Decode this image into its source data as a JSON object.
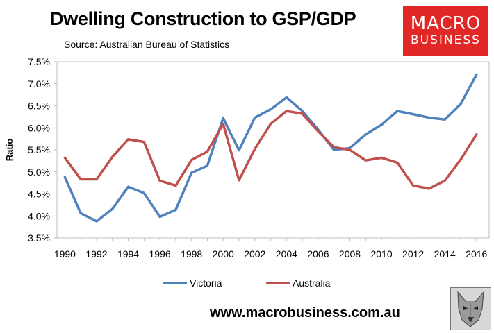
{
  "header": {
    "title": "Dwelling Construction to GSP/GDP",
    "subtitle": "Source: Australian Bureau of Statistics"
  },
  "logo": {
    "line1": "MACRO",
    "line2": "BUSINESS"
  },
  "footer": {
    "url": "www.macrobusiness.com.au"
  },
  "chart_data": {
    "type": "line",
    "title": "Dwelling Construction to GSP/GDP",
    "xlabel": "",
    "ylabel": "Ratio",
    "ylim": [
      3.5,
      7.5
    ],
    "xlim": [
      1989.5,
      2016.8
    ],
    "x": [
      1990,
      1991,
      1992,
      1993,
      1994,
      1995,
      1996,
      1997,
      1998,
      1999,
      2000,
      2001,
      2002,
      2003,
      2004,
      2005,
      2006,
      2007,
      2008,
      2009,
      2010,
      2011,
      2012,
      2013,
      2014,
      2015,
      2016
    ],
    "x_ticks": [
      1990,
      1992,
      1994,
      1996,
      1998,
      2000,
      2002,
      2004,
      2006,
      2008,
      2010,
      2012,
      2014,
      2016
    ],
    "y_ticks": [
      "3.5%",
      "4.0%",
      "4.5%",
      "5.0%",
      "5.5%",
      "6.0%",
      "6.5%",
      "7.0%",
      "7.5%"
    ],
    "y_tick_values": [
      3.5,
      4.0,
      4.5,
      5.0,
      5.5,
      6.0,
      6.5,
      7.0,
      7.5
    ],
    "grid": false,
    "legend_position": "bottom",
    "series": [
      {
        "name": "Victoria",
        "color": "#4f81bd",
        "values": [
          4.88,
          4.06,
          3.88,
          4.16,
          4.66,
          4.52,
          3.98,
          4.14,
          4.98,
          5.14,
          6.22,
          5.49,
          6.23,
          6.42,
          6.69,
          6.38,
          5.96,
          5.5,
          5.54,
          5.85,
          6.07,
          6.38,
          6.31,
          6.23,
          6.19,
          6.54,
          7.21
        ]
      },
      {
        "name": "Australia",
        "color": "#c0504d",
        "values": [
          5.32,
          4.83,
          4.83,
          5.34,
          5.74,
          5.68,
          4.8,
          4.69,
          5.27,
          5.46,
          6.09,
          4.81,
          5.52,
          6.09,
          6.38,
          6.32,
          5.92,
          5.56,
          5.5,
          5.26,
          5.32,
          5.21,
          4.69,
          4.62,
          4.8,
          5.28,
          5.85
        ]
      }
    ]
  }
}
